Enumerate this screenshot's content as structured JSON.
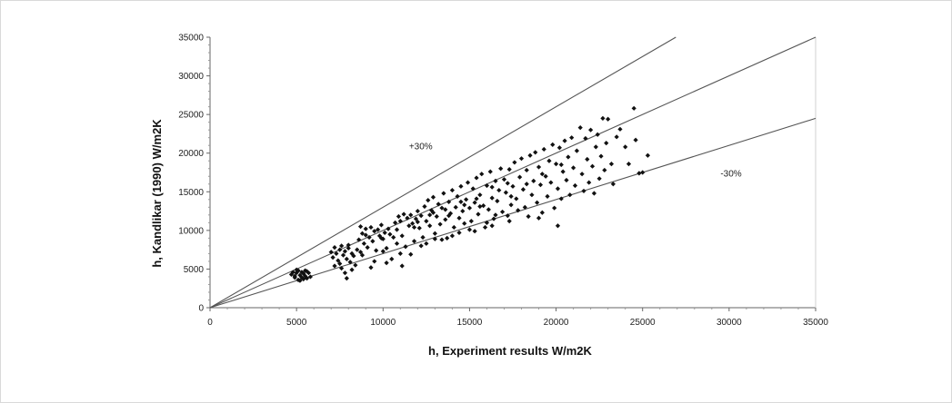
{
  "chart_data": {
    "type": "scatter",
    "title": "",
    "xlabel": "h, Experiment results W/m2K",
    "ylabel": "h, Kandlikar (1990) W/m2K",
    "xlim": [
      0,
      35000
    ],
    "ylim": [
      0,
      35000
    ],
    "xticks": [
      "0",
      "5000",
      "10000",
      "15000",
      "20000",
      "25000",
      "30000",
      "35000"
    ],
    "yticks": [
      "0",
      "5000",
      "10000",
      "15000",
      "20000",
      "25000",
      "30000",
      "35000"
    ],
    "grid": false,
    "legend": "none",
    "reference_lines": [
      {
        "slope": 1.3,
        "label": "+30%"
      },
      {
        "slope": 1.0,
        "label": ""
      },
      {
        "slope": 0.7,
        "label": "-30%"
      }
    ],
    "annotations": [
      {
        "text": "+30%",
        "x": 11500,
        "y": 20500
      },
      {
        "text": "-30%",
        "x": 29500,
        "y": 17000
      }
    ],
    "marker_color": "#111111",
    "line_color": "#555555",
    "series": [
      {
        "points": [
          [
            4700,
            4300
          ],
          [
            4800,
            4600
          ],
          [
            4900,
            4100
          ],
          [
            5000,
            4500
          ],
          [
            5100,
            3600
          ],
          [
            5100,
            4800
          ],
          [
            5200,
            4200
          ],
          [
            5300,
            3900
          ],
          [
            5300,
            4600
          ],
          [
            5400,
            4400
          ],
          [
            5500,
            4100
          ],
          [
            5500,
            4800
          ],
          [
            5600,
            3800
          ],
          [
            5700,
            4500
          ],
          [
            5800,
            4000
          ],
          [
            4900,
            3900
          ],
          [
            5200,
            3500
          ],
          [
            5600,
            4700
          ],
          [
            5000,
            4900
          ],
          [
            5400,
            3700
          ],
          [
            7000,
            7200
          ],
          [
            7100,
            6500
          ],
          [
            7200,
            7800
          ],
          [
            7300,
            7000
          ],
          [
            7400,
            6100
          ],
          [
            7500,
            7500
          ],
          [
            7500,
            5700
          ],
          [
            7600,
            8000
          ],
          [
            7700,
            6800
          ],
          [
            7800,
            4500
          ],
          [
            7800,
            7300
          ],
          [
            7900,
            3800
          ],
          [
            7900,
            6300
          ],
          [
            8000,
            7700
          ],
          [
            8100,
            5900
          ],
          [
            8200,
            7000
          ],
          [
            8300,
            6700
          ],
          [
            8400,
            5500
          ],
          [
            7600,
            5100
          ],
          [
            8000,
            8100
          ],
          [
            8500,
            7500
          ],
          [
            8600,
            8800
          ],
          [
            8700,
            7200
          ],
          [
            8700,
            10500
          ],
          [
            8800,
            9600
          ],
          [
            8900,
            8300
          ],
          [
            9000,
            10200
          ],
          [
            9100,
            7800
          ],
          [
            9200,
            9100
          ],
          [
            9300,
            10400
          ],
          [
            9400,
            8600
          ],
          [
            9500,
            9900
          ],
          [
            9600,
            7400
          ],
          [
            9700,
            10100
          ],
          [
            9800,
            9300
          ],
          [
            9900,
            10700
          ],
          [
            10000,
            8900
          ],
          [
            10100,
            9700
          ],
          [
            10200,
            7700
          ],
          [
            10300,
            10200
          ],
          [
            10400,
            9500
          ],
          [
            10500,
            6300
          ],
          [
            10600,
            9100
          ],
          [
            10700,
            11000
          ],
          [
            10800,
            8300
          ],
          [
            10900,
            11800
          ],
          [
            11000,
            11200
          ],
          [
            11100,
            9300
          ],
          [
            11100,
            5400
          ],
          [
            11200,
            12100
          ],
          [
            11300,
            7900
          ],
          [
            11400,
            11600
          ],
          [
            11500,
            10600
          ],
          [
            11600,
            12000
          ],
          [
            11700,
            10900
          ],
          [
            11800,
            8600
          ],
          [
            11900,
            11500
          ],
          [
            12000,
            12500
          ],
          [
            12100,
            10300
          ],
          [
            12200,
            11900
          ],
          [
            12300,
            9100
          ],
          [
            12400,
            13100
          ],
          [
            12500,
            11200
          ],
          [
            12600,
            13900
          ],
          [
            12700,
            10600
          ],
          [
            12800,
            12600
          ],
          [
            12900,
            14300
          ],
          [
            13000,
            9600
          ],
          [
            13100,
            11800
          ],
          [
            13200,
            13400
          ],
          [
            13300,
            10800
          ],
          [
            13400,
            12900
          ],
          [
            13500,
            14800
          ],
          [
            13600,
            11400
          ],
          [
            13700,
            9000
          ],
          [
            13800,
            13700
          ],
          [
            13900,
            12200
          ],
          [
            14000,
            15200
          ],
          [
            14100,
            10400
          ],
          [
            14200,
            13000
          ],
          [
            14300,
            14400
          ],
          [
            14400,
            11600
          ],
          [
            14500,
            15700
          ],
          [
            14600,
            12500
          ],
          [
            14700,
            10900
          ],
          [
            14800,
            14000
          ],
          [
            14900,
            16200
          ],
          [
            15000,
            12900
          ],
          [
            15100,
            11200
          ],
          [
            15200,
            15400
          ],
          [
            15300,
            13600
          ],
          [
            15400,
            16800
          ],
          [
            15500,
            12100
          ],
          [
            15600,
            14600
          ],
          [
            15700,
            17300
          ],
          [
            15800,
            13200
          ],
          [
            15900,
            10400
          ],
          [
            16000,
            15800
          ],
          [
            16100,
            12700
          ],
          [
            16200,
            17600
          ],
          [
            16300,
            14200
          ],
          [
            16400,
            11500
          ],
          [
            16500,
            16400
          ],
          [
            16600,
            13800
          ],
          [
            16700,
            15200
          ],
          [
            16800,
            18000
          ],
          [
            16900,
            12400
          ],
          [
            17000,
            16600
          ],
          [
            17100,
            14900
          ],
          [
            17200,
            11900
          ],
          [
            17300,
            17900
          ],
          [
            17400,
            13300
          ],
          [
            17500,
            15700
          ],
          [
            17600,
            18800
          ],
          [
            17700,
            14100
          ],
          [
            17800,
            12600
          ],
          [
            17900,
            16900
          ],
          [
            18000,
            19300
          ],
          [
            18100,
            15300
          ],
          [
            18200,
            13000
          ],
          [
            18300,
            17800
          ],
          [
            18400,
            11800
          ],
          [
            18500,
            19700
          ],
          [
            18600,
            14600
          ],
          [
            18700,
            16400
          ],
          [
            18800,
            20100
          ],
          [
            18900,
            13600
          ],
          [
            19000,
            18200
          ],
          [
            19100,
            15900
          ],
          [
            19200,
            12300
          ],
          [
            19300,
            20500
          ],
          [
            19400,
            17000
          ],
          [
            19500,
            14400
          ],
          [
            19600,
            19000
          ],
          [
            19700,
            16200
          ],
          [
            19800,
            21100
          ],
          [
            19900,
            12900
          ],
          [
            20000,
            18600
          ],
          [
            20100,
            15400
          ],
          [
            20200,
            20700
          ],
          [
            20300,
            14100
          ],
          [
            20400,
            17600
          ],
          [
            20500,
            21600
          ],
          [
            20600,
            16500
          ],
          [
            20700,
            19500
          ],
          [
            20800,
            14600
          ],
          [
            20900,
            22000
          ],
          [
            21000,
            18100
          ],
          [
            21100,
            15800
          ],
          [
            21200,
            20300
          ],
          [
            21400,
            23300
          ],
          [
            21500,
            17300
          ],
          [
            21600,
            15100
          ],
          [
            21700,
            21900
          ],
          [
            21800,
            19200
          ],
          [
            21900,
            16200
          ],
          [
            22000,
            23000
          ],
          [
            22100,
            18300
          ],
          [
            22200,
            14800
          ],
          [
            22300,
            20800
          ],
          [
            22400,
            22400
          ],
          [
            22500,
            16700
          ],
          [
            22600,
            19600
          ],
          [
            22700,
            24500
          ],
          [
            22800,
            17800
          ],
          [
            22900,
            21300
          ],
          [
            23000,
            24400
          ],
          [
            23200,
            18600
          ],
          [
            23300,
            16000
          ],
          [
            23500,
            22100
          ],
          [
            23700,
            23100
          ],
          [
            24000,
            20800
          ],
          [
            24200,
            18600
          ],
          [
            24500,
            25800
          ],
          [
            24600,
            21700
          ],
          [
            24800,
            17400
          ],
          [
            25000,
            17500
          ],
          [
            25300,
            19700
          ],
          [
            8800,
            6800
          ],
          [
            9500,
            6000
          ],
          [
            10200,
            5800
          ],
          [
            11600,
            6900
          ],
          [
            12500,
            8300
          ],
          [
            13400,
            8800
          ],
          [
            14400,
            9700
          ],
          [
            15300,
            9900
          ],
          [
            16300,
            10600
          ],
          [
            17300,
            11200
          ],
          [
            19000,
            11600
          ],
          [
            20100,
            10600
          ],
          [
            12000,
            11100
          ],
          [
            12900,
            12300
          ],
          [
            13800,
            11900
          ],
          [
            14700,
            13300
          ],
          [
            15600,
            13100
          ],
          [
            16500,
            12000
          ],
          [
            17400,
            14400
          ],
          [
            18300,
            16000
          ],
          [
            19200,
            17300
          ],
          [
            20300,
            18500
          ],
          [
            9000,
            9400
          ],
          [
            9900,
            9000
          ],
          [
            10800,
            10100
          ],
          [
            11800,
            10400
          ],
          [
            12700,
            12000
          ],
          [
            13600,
            12700
          ],
          [
            14500,
            13700
          ],
          [
            15400,
            14100
          ],
          [
            16300,
            15600
          ],
          [
            17200,
            16100
          ],
          [
            7200,
            5400
          ],
          [
            8200,
            4900
          ],
          [
            9300,
            5200
          ],
          [
            10000,
            7300
          ],
          [
            11000,
            7000
          ],
          [
            12200,
            8000
          ],
          [
            13000,
            8900
          ],
          [
            14000,
            9300
          ],
          [
            15000,
            10100
          ],
          [
            16000,
            11000
          ]
        ]
      }
    ]
  }
}
